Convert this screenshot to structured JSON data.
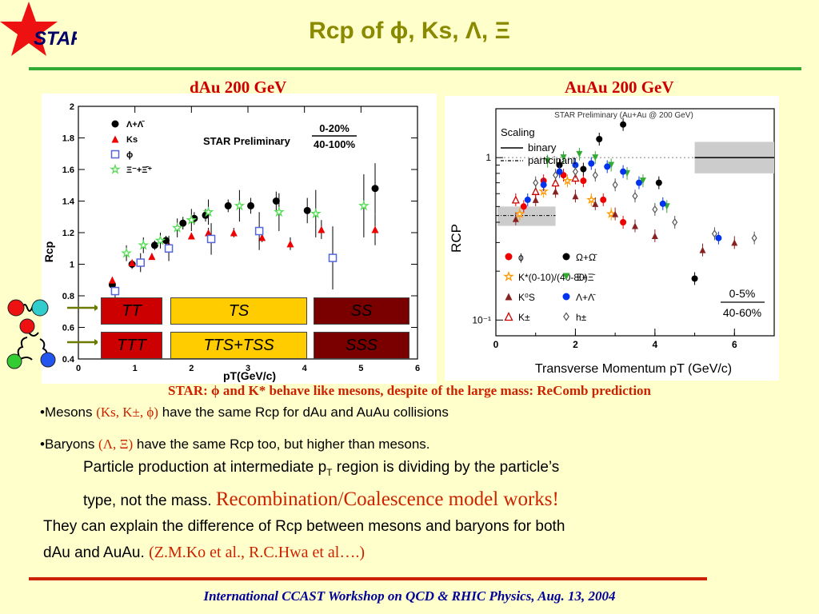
{
  "slide": {
    "logo_text": "STAR",
    "title": "Rcp of ϕ, Ks, Λ, Ξ",
    "colors": {
      "background": "#ffffcc",
      "title": "#8a8a00",
      "rule_green": "#33aa33",
      "rule_red": "#cc2200",
      "highlight": "#cc2200",
      "footer": "#000099"
    }
  },
  "left_panel": {
    "title": "dAu 200 GeV",
    "quark_diagrams": {
      "row1": [
        "TT",
        "TS",
        "SS"
      ],
      "row2": [
        "TTT",
        "TTS+TSS",
        "SSS"
      ],
      "colors": {
        "T": "#cc0000",
        "S_mixed": "#ffcc00",
        "S": "#8b0000"
      }
    }
  },
  "right_panel": {
    "title": "AuAu 200 GeV"
  },
  "chart_data": [
    {
      "type": "scatter",
      "title": "STAR Preliminary",
      "xlabel": "pT(GeV/c)",
      "ylabel": "Rcp",
      "xlim": [
        0,
        6
      ],
      "ylim": [
        0.4,
        2
      ],
      "xticks": [
        "0",
        "1",
        "2",
        "3",
        "4",
        "5",
        "6"
      ],
      "yticks": [
        "0.4",
        "0.6",
        "0.8",
        "1",
        "1.2",
        "1.4",
        "1.6",
        "1.8",
        "2"
      ],
      "centrality_label": [
        "0-20%",
        "40-100%"
      ],
      "legend": "top-left",
      "series": [
        {
          "name": "Λ+Λ̄",
          "marker": "circle",
          "color": "#000000",
          "x": [
            0.6,
            0.95,
            1.35,
            1.55,
            1.85,
            2.05,
            2.25,
            2.65,
            3.05,
            3.5,
            4.05,
            5.25
          ],
          "y": [
            0.87,
            1.0,
            1.12,
            1.15,
            1.26,
            1.29,
            1.31,
            1.37,
            1.37,
            1.4,
            1.34,
            1.48
          ],
          "err": [
            0.03,
            0.03,
            0.03,
            0.03,
            0.04,
            0.04,
            0.04,
            0.04,
            0.05,
            0.06,
            0.08,
            0.16
          ]
        },
        {
          "name": "Ks",
          "marker": "triangle",
          "color": "#ee0000",
          "x": [
            0.6,
            0.95,
            1.3,
            1.6,
            2.0,
            2.3,
            2.75,
            3.25,
            3.75,
            4.3,
            5.25
          ],
          "y": [
            0.9,
            1.01,
            1.05,
            1.12,
            1.18,
            1.2,
            1.2,
            1.17,
            1.13,
            1.22,
            1.22
          ],
          "err": [
            0.02,
            0.02,
            0.02,
            0.02,
            0.02,
            0.03,
            0.03,
            0.03,
            0.04,
            0.06,
            0.1
          ]
        },
        {
          "name": "ϕ",
          "marker": "square",
          "color": "#5566dd",
          "x": [
            0.65,
            1.1,
            1.6,
            2.35,
            3.2,
            4.5
          ],
          "y": [
            0.83,
            1.01,
            1.1,
            1.16,
            1.21,
            1.04
          ],
          "err": [
            0.05,
            0.06,
            0.08,
            0.1,
            0.12,
            0.2
          ]
        },
        {
          "name": "Ξ⁻+Ξ̄⁺",
          "marker": "star",
          "color": "#55dd55",
          "x": [
            0.85,
            1.15,
            1.45,
            1.75,
            2.0,
            2.3,
            2.85,
            3.55,
            4.2,
            5.05
          ],
          "y": [
            1.07,
            1.12,
            1.15,
            1.23,
            1.28,
            1.33,
            1.37,
            1.33,
            1.32,
            1.37
          ],
          "err": [
            0.05,
            0.05,
            0.05,
            0.06,
            0.07,
            0.08,
            0.1,
            0.12,
            0.15,
            0.2
          ]
        }
      ]
    },
    {
      "type": "scatter",
      "title": "STAR Preliminary (Au+Au @ 200 GeV)",
      "xlabel": "Transverse Momentum pT (GeV/c)",
      "ylabel": "RCP",
      "yscale": "log",
      "xlim": [
        0,
        7
      ],
      "ylim": [
        0.08,
        2
      ],
      "xticks": [
        "0",
        "2",
        "4",
        "6"
      ],
      "yticks": [
        "10⁻¹",
        "1"
      ],
      "scaling_legend": {
        "title": "Scaling",
        "items": [
          "binary",
          "participant"
        ]
      },
      "centrality_label": [
        "0-5%",
        "40-60%"
      ],
      "legend": "bottom-left",
      "series": [
        {
          "name": "ϕ",
          "marker": "circle",
          "color": "#ee0000",
          "x": [
            0.7,
            1.2,
            1.7,
            2.2,
            2.7,
            3.2
          ],
          "y": [
            0.5,
            0.72,
            0.78,
            0.72,
            0.55,
            0.4
          ]
        },
        {
          "name": "Ω+Ω̄",
          "marker": "circle",
          "color": "#000000",
          "x": [
            1.6,
            2.2,
            2.6,
            3.2,
            4.1,
            5.0
          ],
          "y": [
            0.9,
            0.85,
            1.3,
            1.6,
            0.7,
            0.18
          ]
        },
        {
          "name": "K*(0-10)/(40-80)",
          "marker": "star",
          "color": "#ff9900",
          "x": [
            0.6,
            1.2,
            1.8,
            2.4,
            2.9
          ],
          "y": [
            0.45,
            0.62,
            0.72,
            0.55,
            0.45
          ]
        },
        {
          "name": "Ξ+Ξ̄",
          "marker": "triangle-down",
          "color": "#33aa33",
          "x": [
            1.3,
            1.7,
            2.1,
            2.5,
            2.9,
            3.3,
            3.7,
            4.3
          ],
          "y": [
            0.95,
            1.0,
            1.05,
            1.0,
            0.9,
            0.8,
            0.72,
            0.5
          ]
        },
        {
          "name": "K⁰S",
          "marker": "triangle",
          "color": "#882222",
          "x": [
            0.5,
            1.0,
            1.5,
            2.0,
            2.5,
            3.0,
            3.5,
            4.0,
            5.2,
            6.0
          ],
          "y": [
            0.42,
            0.55,
            0.62,
            0.58,
            0.52,
            0.45,
            0.38,
            0.33,
            0.27,
            0.3
          ]
        },
        {
          "name": "Λ+Λ̄",
          "marker": "circle",
          "color": "#0033ee",
          "x": [
            0.8,
            1.2,
            1.6,
            2.0,
            2.4,
            2.8,
            3.2,
            3.6,
            4.2,
            5.6
          ],
          "y": [
            0.55,
            0.68,
            0.82,
            0.9,
            0.92,
            0.88,
            0.82,
            0.7,
            0.52,
            0.32
          ]
        },
        {
          "name": "K±",
          "marker": "triangle-open",
          "color": "#cc0000",
          "x": [
            0.5,
            1.0,
            1.5,
            2.0
          ],
          "y": [
            0.55,
            0.62,
            0.7,
            0.75
          ]
        },
        {
          "name": "h±",
          "marker": "diamond-open",
          "color": "#555555",
          "x": [
            1.0,
            1.5,
            2.0,
            2.5,
            3.0,
            3.5,
            4.0,
            4.5,
            5.5,
            6.5
          ],
          "y": [
            0.7,
            0.78,
            0.82,
            0.78,
            0.68,
            0.58,
            0.48,
            0.4,
            0.34,
            0.32
          ]
        }
      ]
    }
  ],
  "text": {
    "caption": "STAR: ϕ and K* behave like mesons, despite of the large mass: ReComb prediction",
    "mesons_pre": "•Mesons ",
    "mesons_red": "(Ks, K±, ϕ)",
    "mesons_post": " have the same Rcp for dAu and AuAu collisions",
    "baryons_pre": "•Baryons ",
    "baryons_red": "(Λ, Ξ)",
    "baryons_post": " have the same Rcp too,  but higher than mesons.",
    "p1a": "Particle production at intermediate p",
    "p1sub": "T",
    "p1b": " region is dividing by the particle’s",
    "p2a": "type, not the mass. ",
    "p2red": "Recombination/Coalescence model works!",
    "p3": "They can explain the difference of Rcp between mesons and baryons for both",
    "p4a": "dAu and AuAu.  ",
    "p4red": "(Z.M.Ko et al., R.C.Hwa et al….)"
  },
  "footer": "International CCAST Workshop on QCD & RHIC Physics, Aug. 13, 2004"
}
